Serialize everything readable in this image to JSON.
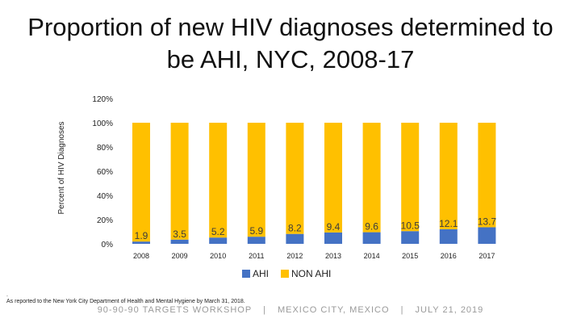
{
  "chart_data": {
    "type": "bar",
    "stacked": true,
    "title": "Proportion of new HIV diagnoses determined to be AHI, NYC, 2008-17",
    "ylabel": "Percent of HIV Diagnoses",
    "xlabel": "",
    "categories": [
      "2008",
      "2009",
      "2010",
      "2011",
      "2012",
      "2013",
      "2014",
      "2015",
      "2016",
      "2017"
    ],
    "series": [
      {
        "name": "AHI",
        "color": "#4472c4",
        "values": [
          1.9,
          3.5,
          5.2,
          5.9,
          8.2,
          9.4,
          9.6,
          10.5,
          12.1,
          13.7
        ]
      },
      {
        "name": "NON AHI",
        "color": "#ffc000",
        "values": [
          98.1,
          96.5,
          94.8,
          94.1,
          91.8,
          90.6,
          90.4,
          89.5,
          87.9,
          86.3
        ]
      }
    ],
    "data_labels": [
      "1.9",
      "3.5",
      "5.2",
      "5.9",
      "8.2",
      "9.4",
      "9.6",
      "10.5",
      "12.1",
      "13.7"
    ],
    "ylim": [
      0,
      120
    ],
    "yticks": [
      "0%",
      "20%",
      "40%",
      "60%",
      "80%",
      "100%",
      "120%"
    ],
    "grid": false,
    "legend": "bottom"
  },
  "footnote": "As reported to the New York City Department of Health and Mental Hygiene by March 31, 2018.",
  "footnote_mark": ".",
  "footer": {
    "parts": [
      "90-90-90 TARGETS WORKSHOP",
      "MEXICO CITY, MEXICO",
      "JULY 21, 2019"
    ],
    "separator": "|"
  }
}
